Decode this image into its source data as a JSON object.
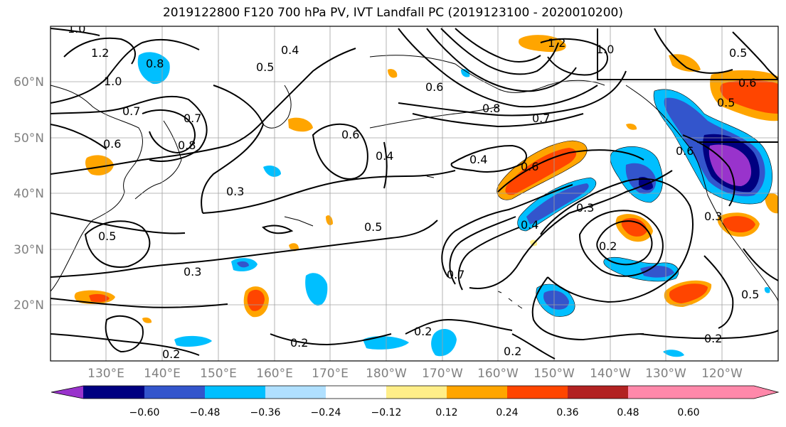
{
  "title": "2019122800 F120 700 hPa PV, IVT Landfall PC (2019123100 - 2020010200)",
  "lat_labels": [
    "60°N",
    "50°N",
    "40°N",
    "30°N",
    "20°N"
  ],
  "lon_labels": [
    "130°E",
    "140°E",
    "150°E",
    "160°E",
    "170°E",
    "180°W",
    "170°W",
    "160°W",
    "150°W",
    "140°W",
    "130°W",
    "120°W"
  ],
  "colorbar": {
    "colors": [
      "#9933cc",
      "#000080",
      "#3355cc",
      "#00bfff",
      "#b0e0ff",
      "#ffffff",
      "#ffee88",
      "#ffa500",
      "#ff4500",
      "#b22222",
      "#ff88aa"
    ],
    "ticks": [
      "−0.60",
      "−0.48",
      "−0.36",
      "−0.24",
      "−0.12",
      "0.12",
      "0.24",
      "0.36",
      "0.48",
      "0.60"
    ]
  },
  "contour_labels": [
    "1.0",
    "1.2",
    "0.8",
    "1.0",
    "0.7",
    "0.6",
    "0.4",
    "0.5",
    "0.6",
    "0.7",
    "0.8",
    "1.2",
    "1.0",
    "0.5",
    "0.6",
    "0.5",
    "0.7",
    "0.6",
    "0.6",
    "0.4",
    "0.4",
    "0.3",
    "0.5",
    "0.3",
    "0.5",
    "0.4",
    "0.3",
    "0.2",
    "0.3",
    "0.6",
    "0.7",
    "0.2",
    "0.2",
    "0.2",
    "0.5",
    "0.2",
    "0.2",
    "0.8"
  ]
}
